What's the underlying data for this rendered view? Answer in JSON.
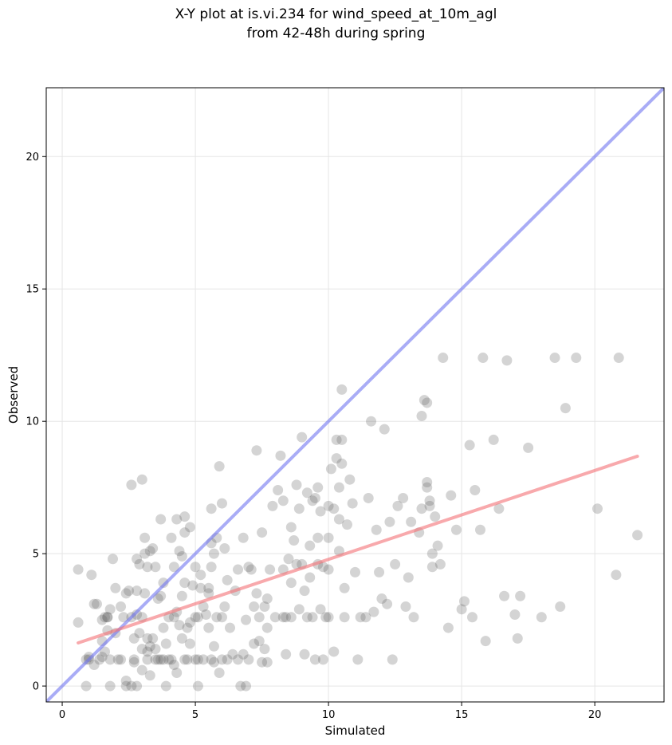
{
  "chart_data": {
    "type": "scatter",
    "title_line1": "X-Y plot at is.vi.234 for wind_speed_at_10m_agl",
    "title_line2": "from 42-48h during spring",
    "xlabel": "Simulated",
    "ylabel": "Observed",
    "xlim": [
      -0.6,
      22.6
    ],
    "ylim": [
      -0.6,
      22.6
    ],
    "xticks": [
      0,
      5,
      10,
      15,
      20
    ],
    "yticks": [
      0,
      5,
      10,
      15,
      20
    ],
    "grid": true,
    "colors": {
      "points": "#555555",
      "identity_line": "#6f74f0",
      "fit_line": "#f46f74",
      "grid": "#e5e5e5"
    },
    "series": [
      {
        "kind": "points",
        "points": [
          [
            0.6,
            4.4
          ],
          [
            0.6,
            2.4
          ],
          [
            0.9,
            1.0
          ],
          [
            0.9,
            0.0
          ],
          [
            1.0,
            1.0
          ],
          [
            1.0,
            1.1
          ],
          [
            1.1,
            4.2
          ],
          [
            1.2,
            0.8
          ],
          [
            1.2,
            3.1
          ],
          [
            1.3,
            3.1
          ],
          [
            1.4,
            1.0
          ],
          [
            1.5,
            1.7
          ],
          [
            1.5,
            1.1
          ],
          [
            1.5,
            2.5
          ],
          [
            1.6,
            2.6
          ],
          [
            1.6,
            1.3
          ],
          [
            1.7,
            2.6
          ],
          [
            1.7,
            2.1
          ],
          [
            1.7,
            2.6
          ],
          [
            1.8,
            2.9
          ],
          [
            1.8,
            1.0
          ],
          [
            1.8,
            0.0
          ],
          [
            1.9,
            4.8
          ],
          [
            2.0,
            2.0
          ],
          [
            2.0,
            3.7
          ],
          [
            2.1,
            1.0
          ],
          [
            2.2,
            1.0
          ],
          [
            2.2,
            3.0
          ],
          [
            2.3,
            2.6
          ],
          [
            2.4,
            3.5
          ],
          [
            2.4,
            0.2
          ],
          [
            2.4,
            0.0
          ],
          [
            2.5,
            3.6
          ],
          [
            2.6,
            0.0
          ],
          [
            2.6,
            7.6
          ],
          [
            2.6,
            2.6
          ],
          [
            2.7,
            1.8
          ],
          [
            2.7,
            0.9
          ],
          [
            2.7,
            1.0
          ],
          [
            2.8,
            4.8
          ],
          [
            2.8,
            3.6
          ],
          [
            2.8,
            2.7
          ],
          [
            2.8,
            0.0
          ],
          [
            2.9,
            2.0
          ],
          [
            2.9,
            4.6
          ],
          [
            3.0,
            7.8
          ],
          [
            3.0,
            2.6
          ],
          [
            3.0,
            1.4
          ],
          [
            3.0,
            0.6
          ],
          [
            3.1,
            3.5
          ],
          [
            3.1,
            5.6
          ],
          [
            3.1,
            5.0
          ],
          [
            3.2,
            1.0
          ],
          [
            3.2,
            1.3
          ],
          [
            3.2,
            1.8
          ],
          [
            3.2,
            4.5
          ],
          [
            3.3,
            0.4
          ],
          [
            3.3,
            1.5
          ],
          [
            3.3,
            5.1
          ],
          [
            3.4,
            1.8
          ],
          [
            3.4,
            5.2
          ],
          [
            3.5,
            1.0
          ],
          [
            3.5,
            1.4
          ],
          [
            3.5,
            4.5
          ],
          [
            3.6,
            3.3
          ],
          [
            3.6,
            1.0
          ],
          [
            3.7,
            6.3
          ],
          [
            3.7,
            3.4
          ],
          [
            3.7,
            1.0
          ],
          [
            3.8,
            1.0
          ],
          [
            3.8,
            3.9
          ],
          [
            3.8,
            2.2
          ],
          [
            3.9,
            1.6
          ],
          [
            3.9,
            0.0
          ],
          [
            4.0,
            2.6
          ],
          [
            4.0,
            1.0
          ],
          [
            4.1,
            5.6
          ],
          [
            4.1,
            1.0
          ],
          [
            4.2,
            0.8
          ],
          [
            4.2,
            2.6
          ],
          [
            4.2,
            4.5
          ],
          [
            4.3,
            0.5
          ],
          [
            4.3,
            6.3
          ],
          [
            4.3,
            2.8
          ],
          [
            4.4,
            5.1
          ],
          [
            4.4,
            2.3
          ],
          [
            4.5,
            4.9
          ],
          [
            4.5,
            1.8
          ],
          [
            4.5,
            3.4
          ],
          [
            4.6,
            6.4
          ],
          [
            4.6,
            5.8
          ],
          [
            4.6,
            1.0
          ],
          [
            4.7,
            2.2
          ],
          [
            4.7,
            1.0
          ],
          [
            4.8,
            6.0
          ],
          [
            4.8,
            2.4
          ],
          [
            4.8,
            1.6
          ],
          [
            4.9,
            3.8
          ],
          [
            5.0,
            1.0
          ],
          [
            5.0,
            2.6
          ],
          [
            5.0,
            4.5
          ],
          [
            5.1,
            1.0
          ],
          [
            5.1,
            2.6
          ],
          [
            5.1,
            0.0
          ],
          [
            5.2,
            4.2
          ],
          [
            5.2,
            3.7
          ],
          [
            5.3,
            3.0
          ],
          [
            5.3,
            1.0
          ],
          [
            5.4,
            2.7
          ],
          [
            5.5,
            2.2
          ],
          [
            5.5,
            3.5
          ],
          [
            5.6,
            5.4
          ],
          [
            5.6,
            6.7
          ],
          [
            5.6,
            4.5
          ],
          [
            5.6,
            1.0
          ],
          [
            5.7,
            1.5
          ],
          [
            5.7,
            5.0
          ],
          [
            5.8,
            5.6
          ],
          [
            5.8,
            2.6
          ],
          [
            5.9,
            0.5
          ],
          [
            5.9,
            8.3
          ],
          [
            6.0,
            6.9
          ],
          [
            6.0,
            2.6
          ],
          [
            6.0,
            1.0
          ],
          [
            6.1,
            5.2
          ],
          [
            6.1,
            3.0
          ],
          [
            6.2,
            1.0
          ],
          [
            6.2,
            4.0
          ],
          [
            6.3,
            2.2
          ],
          [
            6.4,
            1.2
          ],
          [
            6.5,
            3.6
          ],
          [
            6.6,
            1.0
          ],
          [
            6.7,
            0.0
          ],
          [
            6.8,
            1.2
          ],
          [
            6.8,
            5.6
          ],
          [
            6.9,
            2.5
          ],
          [
            7.0,
            1.0
          ],
          [
            7.0,
            4.5
          ],
          [
            7.1,
            4.4
          ],
          [
            7.2,
            1.6
          ],
          [
            7.2,
            3.0
          ],
          [
            7.3,
            3.5
          ],
          [
            7.3,
            8.9
          ],
          [
            7.4,
            1.7
          ],
          [
            7.4,
            2.6
          ],
          [
            7.5,
            5.8
          ],
          [
            7.5,
            0.9
          ],
          [
            7.6,
            1.4
          ],
          [
            7.6,
            3.0
          ],
          [
            7.7,
            2.2
          ],
          [
            7.7,
            0.9
          ],
          [
            7.8,
            4.4
          ],
          [
            7.9,
            6.8
          ],
          [
            8.0,
            2.6
          ],
          [
            8.1,
            7.4
          ],
          [
            8.2,
            8.7
          ],
          [
            8.3,
            7.0
          ],
          [
            8.3,
            4.4
          ],
          [
            8.4,
            2.6
          ],
          [
            8.4,
            1.2
          ],
          [
            8.5,
            4.8
          ],
          [
            8.6,
            6.0
          ],
          [
            8.6,
            3.9
          ],
          [
            8.6,
            2.6
          ],
          [
            8.7,
            5.5
          ],
          [
            8.8,
            4.6
          ],
          [
            8.8,
            7.6
          ],
          [
            8.9,
            2.9
          ],
          [
            8.9,
            6.7
          ],
          [
            9.0,
            9.4
          ],
          [
            9.0,
            4.6
          ],
          [
            9.1,
            3.6
          ],
          [
            9.1,
            1.2
          ],
          [
            9.2,
            7.3
          ],
          [
            9.2,
            2.6
          ],
          [
            9.3,
            5.3
          ],
          [
            9.3,
            4.1
          ],
          [
            9.4,
            7.0
          ],
          [
            9.4,
            2.6
          ],
          [
            9.5,
            7.1
          ],
          [
            9.5,
            1.0
          ],
          [
            9.6,
            5.6
          ],
          [
            9.6,
            4.6
          ],
          [
            9.6,
            7.5
          ],
          [
            9.7,
            6.6
          ],
          [
            9.7,
            2.9
          ],
          [
            9.8,
            1.0
          ],
          [
            9.9,
            2.6
          ],
          [
            10.0,
            6.8
          ],
          [
            10.0,
            5.6
          ],
          [
            10.0,
            4.4
          ],
          [
            10.0,
            2.6
          ],
          [
            10.1,
            8.2
          ],
          [
            10.2,
            6.7
          ],
          [
            10.2,
            1.3
          ],
          [
            10.3,
            9.3
          ],
          [
            10.3,
            8.6
          ],
          [
            10.4,
            7.5
          ],
          [
            10.4,
            6.3
          ],
          [
            10.4,
            5.1
          ],
          [
            10.5,
            11.2
          ],
          [
            10.5,
            9.3
          ],
          [
            10.5,
            8.4
          ],
          [
            10.6,
            3.7
          ],
          [
            10.6,
            2.6
          ],
          [
            10.7,
            6.1
          ],
          [
            10.8,
            7.8
          ],
          [
            10.9,
            6.9
          ],
          [
            11.0,
            4.3
          ],
          [
            11.1,
            1.0
          ],
          [
            11.4,
            2.6
          ],
          [
            11.5,
            7.1
          ],
          [
            11.6,
            10.0
          ],
          [
            11.7,
            2.8
          ],
          [
            11.8,
            5.9
          ],
          [
            11.9,
            4.3
          ],
          [
            12.1,
            9.7
          ],
          [
            12.2,
            3.1
          ],
          [
            12.3,
            6.2
          ],
          [
            12.5,
            4.6
          ],
          [
            12.6,
            6.8
          ],
          [
            12.8,
            7.1
          ],
          [
            12.9,
            3.0
          ],
          [
            13.0,
            4.1
          ],
          [
            13.1,
            6.2
          ],
          [
            13.2,
            2.6
          ],
          [
            13.4,
            5.8
          ],
          [
            13.5,
            6.7
          ],
          [
            13.6,
            10.8
          ],
          [
            13.7,
            7.5
          ],
          [
            13.7,
            7.7
          ],
          [
            13.8,
            7.0
          ],
          [
            13.8,
            6.8
          ],
          [
            13.9,
            5.0
          ],
          [
            13.9,
            4.5
          ],
          [
            14.0,
            6.4
          ],
          [
            14.1,
            5.3
          ],
          [
            14.2,
            4.6
          ],
          [
            14.3,
            12.4
          ],
          [
            14.5,
            2.2
          ],
          [
            14.6,
            7.2
          ],
          [
            14.8,
            5.9
          ],
          [
            15.0,
            2.9
          ],
          [
            15.1,
            3.2
          ],
          [
            15.3,
            9.1
          ],
          [
            15.4,
            2.6
          ],
          [
            15.5,
            7.4
          ],
          [
            15.7,
            5.9
          ],
          [
            15.8,
            12.4
          ],
          [
            15.9,
            1.7
          ],
          [
            16.2,
            9.3
          ],
          [
            16.4,
            6.7
          ],
          [
            16.6,
            3.4
          ],
          [
            16.7,
            12.3
          ],
          [
            17.0,
            2.7
          ],
          [
            17.1,
            1.8
          ],
          [
            17.2,
            3.4
          ],
          [
            17.5,
            9.0
          ],
          [
            18.0,
            2.6
          ],
          [
            18.5,
            12.4
          ],
          [
            18.7,
            3.0
          ],
          [
            18.9,
            10.5
          ],
          [
            19.3,
            12.4
          ],
          [
            20.1,
            6.7
          ],
          [
            20.8,
            4.2
          ],
          [
            20.9,
            12.4
          ],
          [
            21.6,
            5.7
          ],
          [
            5.7,
            0.9
          ],
          [
            6.9,
            0.0
          ],
          [
            12.0,
            3.3
          ],
          [
            12.4,
            1.0
          ],
          [
            13.5,
            10.2
          ],
          [
            13.7,
            10.7
          ],
          [
            11.2,
            2.6
          ],
          [
            9.8,
            4.5
          ],
          [
            8.3,
            2.6
          ],
          [
            7.7,
            3.3
          ],
          [
            6.6,
            4.4
          ],
          [
            5.5,
            3.7
          ],
          [
            4.6,
            3.9
          ]
        ]
      },
      {
        "kind": "identity",
        "name": "",
        "points": [
          [
            -0.6,
            -0.6
          ],
          [
            22.6,
            22.6
          ]
        ]
      },
      {
        "kind": "fit",
        "name": "",
        "points": [
          [
            0.6,
            1.63
          ],
          [
            21.6,
            8.68
          ]
        ]
      }
    ]
  }
}
